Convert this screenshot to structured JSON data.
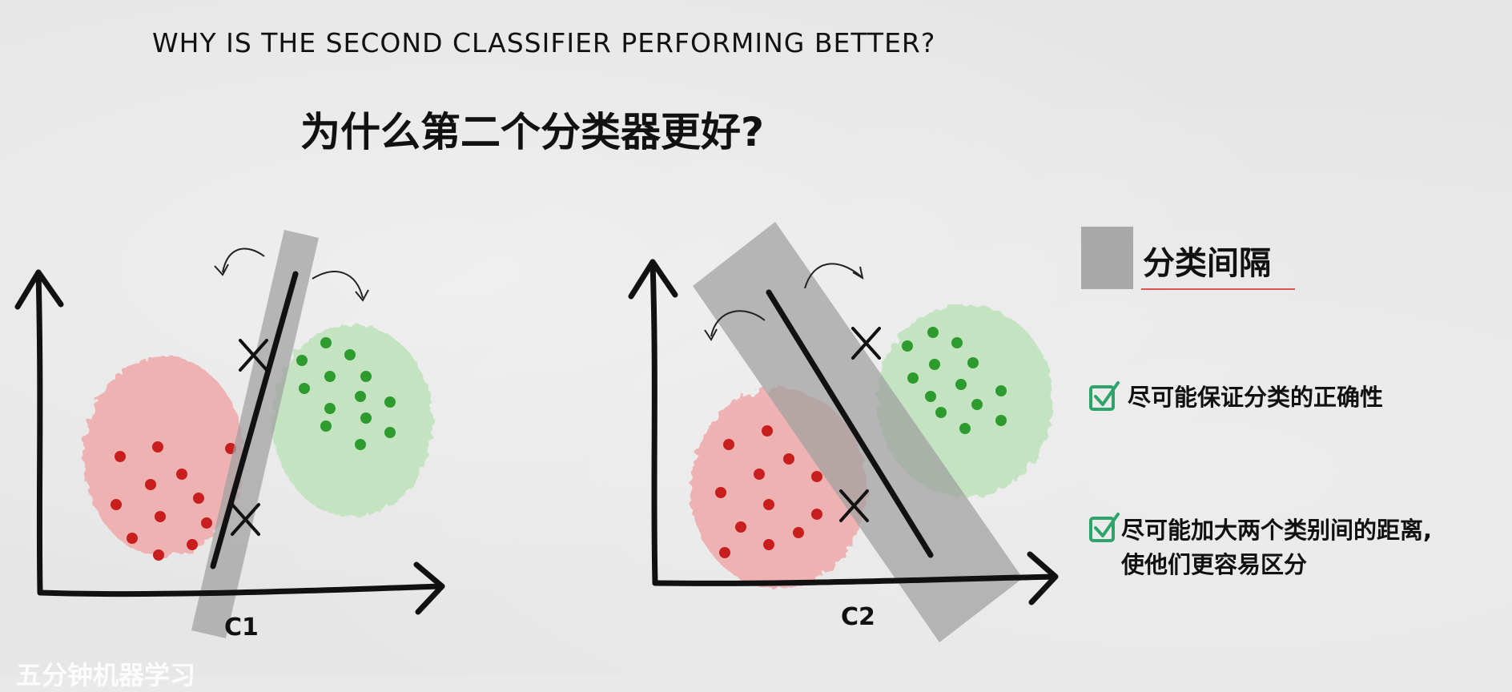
{
  "title_en": "WHY IS THE SECOND CLASSIFIER PERFORMING BETTER?",
  "title_zh": "为什么第二个分类器更好?",
  "legend": {
    "label": "分类间隔",
    "swatch_color": "#a9a9a9"
  },
  "points": [
    {
      "text": "尽可能保证分类的正确性",
      "icon": "check-icon"
    },
    {
      "text_line1": "尽可能加大两个类别间的距离,",
      "text_line2": "使他们更容易区分",
      "icon": "check-icon"
    }
  ],
  "plots": [
    {
      "label": "C1",
      "margin": "narrow"
    },
    {
      "label": "C2",
      "margin": "wide"
    }
  ],
  "colors": {
    "red_cluster": "#f0a9a9",
    "red_dot": "#c81e1e",
    "green_cluster": "#bfe3bd",
    "green_dot": "#2e9b2e",
    "margin_band": "#a0a0a0",
    "check_green": "#2fa46a"
  },
  "footer": "五分钟机器学习"
}
